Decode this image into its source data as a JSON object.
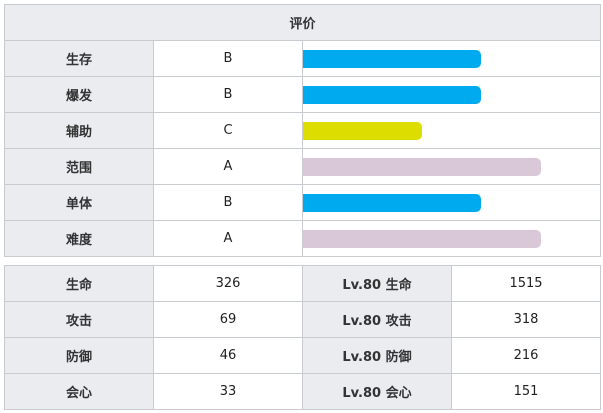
{
  "rating": {
    "title": "评价",
    "max_value": 100,
    "rows": [
      {
        "label": "生存",
        "grade": "B",
        "level": 75,
        "color": "#00aaee"
      },
      {
        "label": "爆发",
        "grade": "B",
        "level": 75,
        "color": "#00aaee"
      },
      {
        "label": "辅助",
        "grade": "C",
        "level": 50,
        "color": "#dddd00"
      },
      {
        "label": "范围",
        "grade": "A",
        "level": 100,
        "color": "#d8c8d8"
      },
      {
        "label": "单体",
        "grade": "B",
        "level": 75,
        "color": "#00aaee"
      },
      {
        "label": "难度",
        "grade": "A",
        "level": 100,
        "color": "#d8c8d8"
      }
    ]
  },
  "stats": {
    "rows": [
      {
        "label": "生命",
        "value": "326",
        "lv_label": "Lv.80 生命",
        "lv_value": "1515"
      },
      {
        "label": "攻击",
        "value": "69",
        "lv_label": "Lv.80 攻击",
        "lv_value": "318"
      },
      {
        "label": "防御",
        "value": "46",
        "lv_label": "Lv.80 防御",
        "lv_value": "216"
      },
      {
        "label": "会心",
        "value": "33",
        "lv_label": "Lv.80 会心",
        "lv_value": "151"
      }
    ]
  }
}
